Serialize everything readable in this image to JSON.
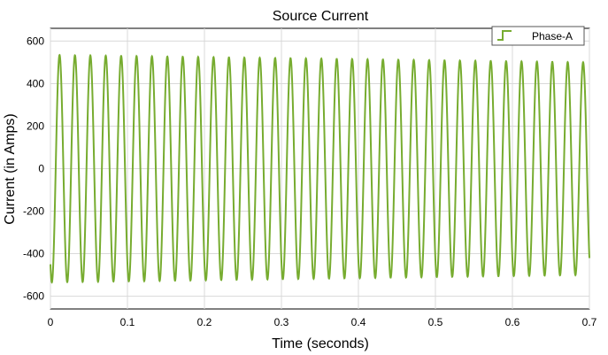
{
  "chart_data": {
    "type": "line",
    "title": "Source Current",
    "xlabel": "Time (seconds)",
    "ylabel": "Current (in Amps)",
    "xlim": [
      0,
      0.7
    ],
    "ylim": [
      -660,
      660
    ],
    "x_ticks": [
      0,
      0.1,
      0.2,
      0.3,
      0.4,
      0.5,
      0.6,
      0.7
    ],
    "x_tick_labels": [
      "0",
      "0.1",
      "0.2",
      "0.3",
      "0.4",
      "0.5",
      "0.6",
      "0.7"
    ],
    "y_ticks": [
      -600,
      -400,
      -200,
      0,
      200,
      400,
      600
    ],
    "y_tick_labels": [
      "-600",
      "-400",
      "-200",
      "0",
      "200",
      "400",
      "600"
    ],
    "grid": true,
    "legend_position": "top-right",
    "series": [
      {
        "name": "Phase-A",
        "color": "#77AC30",
        "waveform": "sine",
        "frequency_hz": 50,
        "amplitude_start": 535,
        "amplitude_end": 500,
        "value_at_start": -450,
        "value_at_end": -480
      }
    ]
  }
}
